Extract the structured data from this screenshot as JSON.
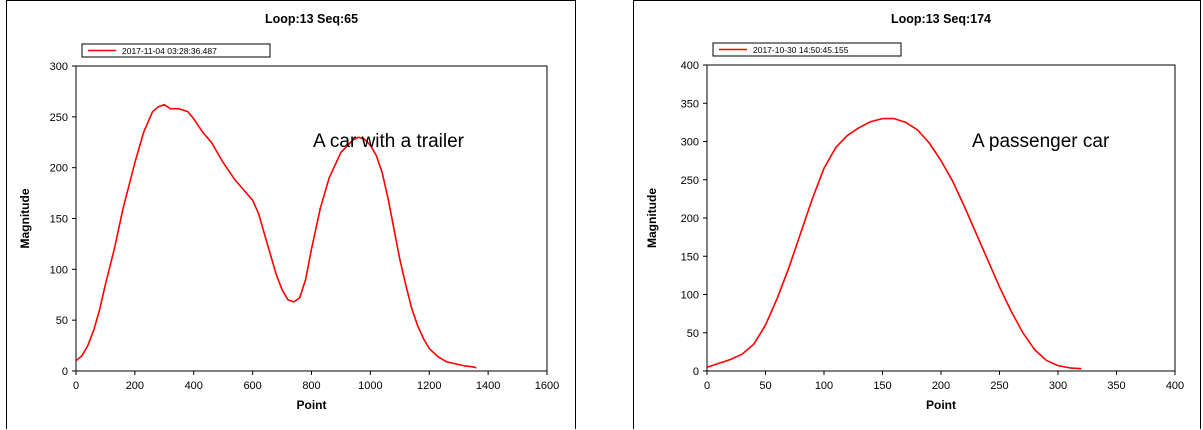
{
  "chart_data": [
    {
      "type": "line",
      "title": "Loop:13  Seq:65",
      "xlabel": "Point",
      "ylabel": "Magnitude",
      "xlim": [
        0,
        1600
      ],
      "ylim": [
        0,
        300
      ],
      "xticks": [
        0,
        200,
        400,
        600,
        800,
        1000,
        1200,
        1400,
        1600
      ],
      "yticks": [
        0,
        50,
        100,
        150,
        200,
        250,
        300
      ],
      "grid": false,
      "legend_position": "top-left",
      "annotation": "A car with a trailer",
      "color": "#ff0000",
      "series": [
        {
          "name": "2017-11-04 03:28:36.487",
          "x": [
            0,
            20,
            40,
            60,
            80,
            100,
            130,
            160,
            200,
            230,
            260,
            280,
            300,
            320,
            350,
            380,
            400,
            430,
            460,
            500,
            540,
            570,
            600,
            620,
            640,
            660,
            680,
            700,
            720,
            740,
            760,
            780,
            800,
            830,
            860,
            900,
            940,
            960,
            980,
            1000,
            1020,
            1040,
            1060,
            1080,
            1100,
            1120,
            1140,
            1160,
            1180,
            1200,
            1230,
            1260,
            1290,
            1320,
            1350,
            1360
          ],
          "y": [
            10,
            15,
            25,
            40,
            60,
            85,
            120,
            160,
            205,
            235,
            255,
            260,
            262,
            258,
            258,
            255,
            248,
            235,
            225,
            205,
            188,
            178,
            168,
            155,
            135,
            115,
            95,
            80,
            70,
            68,
            72,
            90,
            120,
            160,
            190,
            215,
            227,
            230,
            228,
            222,
            212,
            195,
            170,
            140,
            110,
            85,
            62,
            45,
            32,
            22,
            14,
            9,
            7,
            5,
            4,
            3
          ]
        }
      ]
    },
    {
      "type": "line",
      "title": "Loop:13  Seq:174",
      "xlabel": "Point",
      "ylabel": "Magnitude",
      "xlim": [
        0,
        400
      ],
      "ylim": [
        0,
        400
      ],
      "xticks": [
        0,
        50,
        100,
        150,
        200,
        250,
        300,
        350,
        400
      ],
      "yticks": [
        0,
        50,
        100,
        150,
        200,
        250,
        300,
        350,
        400
      ],
      "grid": false,
      "legend_position": "top-left",
      "annotation": "A passenger car",
      "color": "#ff0000",
      "series": [
        {
          "name": "2017-10-30 14:50:45.155",
          "x": [
            0,
            10,
            20,
            30,
            40,
            50,
            60,
            70,
            80,
            90,
            100,
            110,
            120,
            130,
            140,
            150,
            160,
            170,
            180,
            190,
            200,
            210,
            220,
            230,
            240,
            250,
            260,
            270,
            280,
            290,
            300,
            310,
            320
          ],
          "y": [
            5,
            10,
            15,
            22,
            35,
            60,
            95,
            135,
            180,
            225,
            265,
            292,
            308,
            318,
            326,
            330,
            330,
            325,
            315,
            298,
            275,
            248,
            215,
            180,
            145,
            110,
            78,
            50,
            28,
            14,
            7,
            4,
            3
          ]
        }
      ]
    }
  ]
}
